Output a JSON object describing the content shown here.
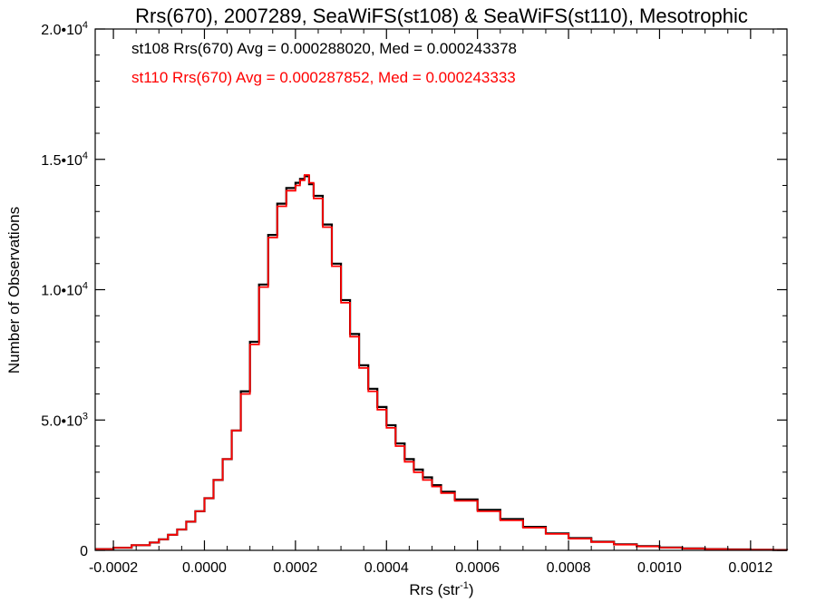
{
  "chart_data": {
    "type": "histogram-step",
    "title": "Rrs(670), 2007289, SeaWiFS(st108) & SeaWiFS(st110), Mesotrophic",
    "xlabel": "Rrs (str",
    "xlabel_sup": "-1",
    "xlabel_end": ")",
    "ylabel": "Number of Observations",
    "xlim": [
      -0.00024,
      0.00128
    ],
    "ylim": [
      0,
      20000
    ],
    "x_ticks": [
      {
        "value": -0.0002,
        "label": "-0.0002"
      },
      {
        "value": 0.0,
        "label": "0.0000"
      },
      {
        "value": 0.0002,
        "label": "0.0002"
      },
      {
        "value": 0.0004,
        "label": "0.0004"
      },
      {
        "value": 0.0006,
        "label": "0.0006"
      },
      {
        "value": 0.0008,
        "label": "0.0008"
      },
      {
        "value": 0.001,
        "label": "0.0010"
      },
      {
        "value": 0.0012,
        "label": "0.0012"
      }
    ],
    "y_ticks": [
      {
        "value": 0,
        "base": "0",
        "exp": ""
      },
      {
        "value": 5000,
        "base": "5.0•10",
        "exp": "3"
      },
      {
        "value": 10000,
        "base": "1.0•10",
        "exp": "4"
      },
      {
        "value": 15000,
        "base": "1.5•10",
        "exp": "4"
      },
      {
        "value": 20000,
        "base": "2.0•10",
        "exp": "4"
      }
    ],
    "grid": false,
    "series": [
      {
        "name": "st108",
        "color": "#000000",
        "stats": "st108 Rrs(670) Avg = 0.000288020, Med = 0.000243378",
        "x": [
          -0.00024,
          -0.0002,
          -0.00016,
          -0.00012,
          -0.0001,
          -8e-05,
          -6e-05,
          -4e-05,
          -2e-05,
          0.0,
          2e-05,
          4e-05,
          6e-05,
          8e-05,
          0.0001,
          0.00012,
          0.00014,
          0.00016,
          0.00018,
          0.0002,
          0.00021,
          0.00022,
          0.00023,
          0.00024,
          0.00026,
          0.00028,
          0.0003,
          0.00032,
          0.00034,
          0.00036,
          0.00038,
          0.0004,
          0.00042,
          0.00044,
          0.00046,
          0.00048,
          0.0005,
          0.00052,
          0.00055,
          0.0006,
          0.00065,
          0.0007,
          0.00075,
          0.0008,
          0.00085,
          0.0009,
          0.00095,
          0.001,
          0.00105,
          0.0011,
          0.00115,
          0.0012,
          0.00125,
          0.00128
        ],
        "y": [
          50,
          100,
          200,
          300,
          420,
          600,
          800,
          1100,
          1500,
          2000,
          2700,
          3500,
          4600,
          6100,
          8000,
          10200,
          12100,
          13300,
          13900,
          14100,
          14250,
          14350,
          14050,
          13600,
          12500,
          11000,
          9600,
          8300,
          7100,
          6200,
          5500,
          4800,
          4100,
          3500,
          3100,
          2800,
          2500,
          2250,
          1950,
          1550,
          1200,
          900,
          650,
          470,
          330,
          230,
          160,
          110,
          75,
          50,
          35,
          25,
          15,
          10
        ]
      },
      {
        "name": "st110",
        "color": "#ff0000",
        "stats": "st110 Rrs(670) Avg = 0.000287852, Med = 0.000243333",
        "x": [
          -0.00024,
          -0.0002,
          -0.00016,
          -0.00012,
          -0.0001,
          -8e-05,
          -6e-05,
          -4e-05,
          -2e-05,
          0.0,
          2e-05,
          4e-05,
          6e-05,
          8e-05,
          0.0001,
          0.00012,
          0.00014,
          0.00016,
          0.00018,
          0.0002,
          0.00021,
          0.00022,
          0.00023,
          0.00024,
          0.00026,
          0.00028,
          0.0003,
          0.00032,
          0.00034,
          0.00036,
          0.00038,
          0.0004,
          0.00042,
          0.00044,
          0.00046,
          0.00048,
          0.0005,
          0.00052,
          0.00055,
          0.0006,
          0.00065,
          0.0007,
          0.00075,
          0.0008,
          0.00085,
          0.0009,
          0.00095,
          0.001,
          0.00105,
          0.0011,
          0.00115,
          0.0012,
          0.00125,
          0.00128
        ],
        "y": [
          50,
          100,
          200,
          300,
          420,
          600,
          800,
          1100,
          1500,
          2000,
          2700,
          3500,
          4600,
          6000,
          7900,
          10100,
          12000,
          13200,
          13800,
          14000,
          14200,
          14400,
          14100,
          13500,
          12400,
          10900,
          9500,
          8200,
          7000,
          6100,
          5400,
          4700,
          4000,
          3400,
          3000,
          2700,
          2450,
          2200,
          1900,
          1500,
          1150,
          870,
          630,
          450,
          320,
          220,
          150,
          100,
          70,
          48,
          33,
          22,
          14,
          10
        ]
      }
    ]
  }
}
